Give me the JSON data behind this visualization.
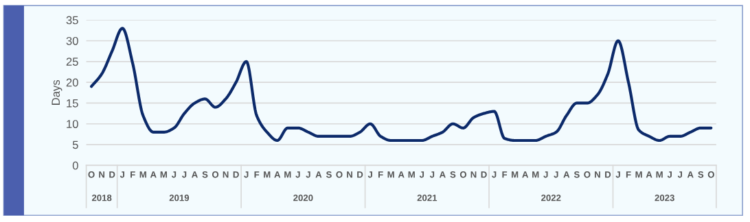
{
  "chart_data": {
    "type": "line",
    "ylabel": "Days",
    "categories": [
      "O",
      "N",
      "D",
      "J",
      "F",
      "M",
      "A",
      "M",
      "J",
      "J",
      "A",
      "S",
      "O",
      "N",
      "D",
      "J",
      "F",
      "M",
      "A",
      "M",
      "J",
      "J",
      "A",
      "S",
      "O",
      "N",
      "D",
      "J",
      "F",
      "M",
      "A",
      "M",
      "J",
      "J",
      "A",
      "S",
      "O",
      "N",
      "D",
      "J",
      "F",
      "M",
      "A",
      "M",
      "J",
      "J",
      "A",
      "S",
      "O",
      "N",
      "D",
      "J",
      "F",
      "M",
      "A",
      "M",
      "J",
      "J",
      "A",
      "S",
      "O"
    ],
    "series": [
      {
        "color": "#0c2a6a",
        "values": [
          19,
          22,
          27.5,
          33,
          24.5,
          12,
          8,
          8,
          9,
          12.5,
          15,
          16,
          14,
          16,
          20,
          25,
          12,
          8,
          6,
          9,
          9,
          8,
          7,
          7,
          7,
          7,
          8,
          10,
          7,
          6,
          6,
          6,
          6,
          7,
          8,
          10,
          9,
          11.5,
          12.5,
          13,
          6.5,
          6,
          6,
          6,
          7,
          8,
          12,
          15,
          15,
          17,
          22,
          30,
          20,
          8.5,
          7,
          6,
          7,
          7,
          8,
          9,
          9
        ]
      }
    ],
    "x2lim": [
      "2018-10-01",
      "2023-11-01"
    ],
    "x2ticks": [
      {
        "value": "2018-11-16",
        "label": "2018"
      },
      {
        "value": "2019-07-01",
        "label": "2019"
      },
      {
        "value": "2020-07-01",
        "label": "2020"
      },
      {
        "value": "2021-07-01",
        "label": "2021"
      },
      {
        "value": "2022-07-01",
        "label": "2022"
      },
      {
        "value": "2023-06-01",
        "label": "2023"
      }
    ],
    "ylim": [
      0,
      35
    ],
    "yticks": [
      0,
      5,
      10,
      15,
      20,
      25,
      30,
      35
    ],
    "grid": "y",
    "line_style": "solid"
  }
}
